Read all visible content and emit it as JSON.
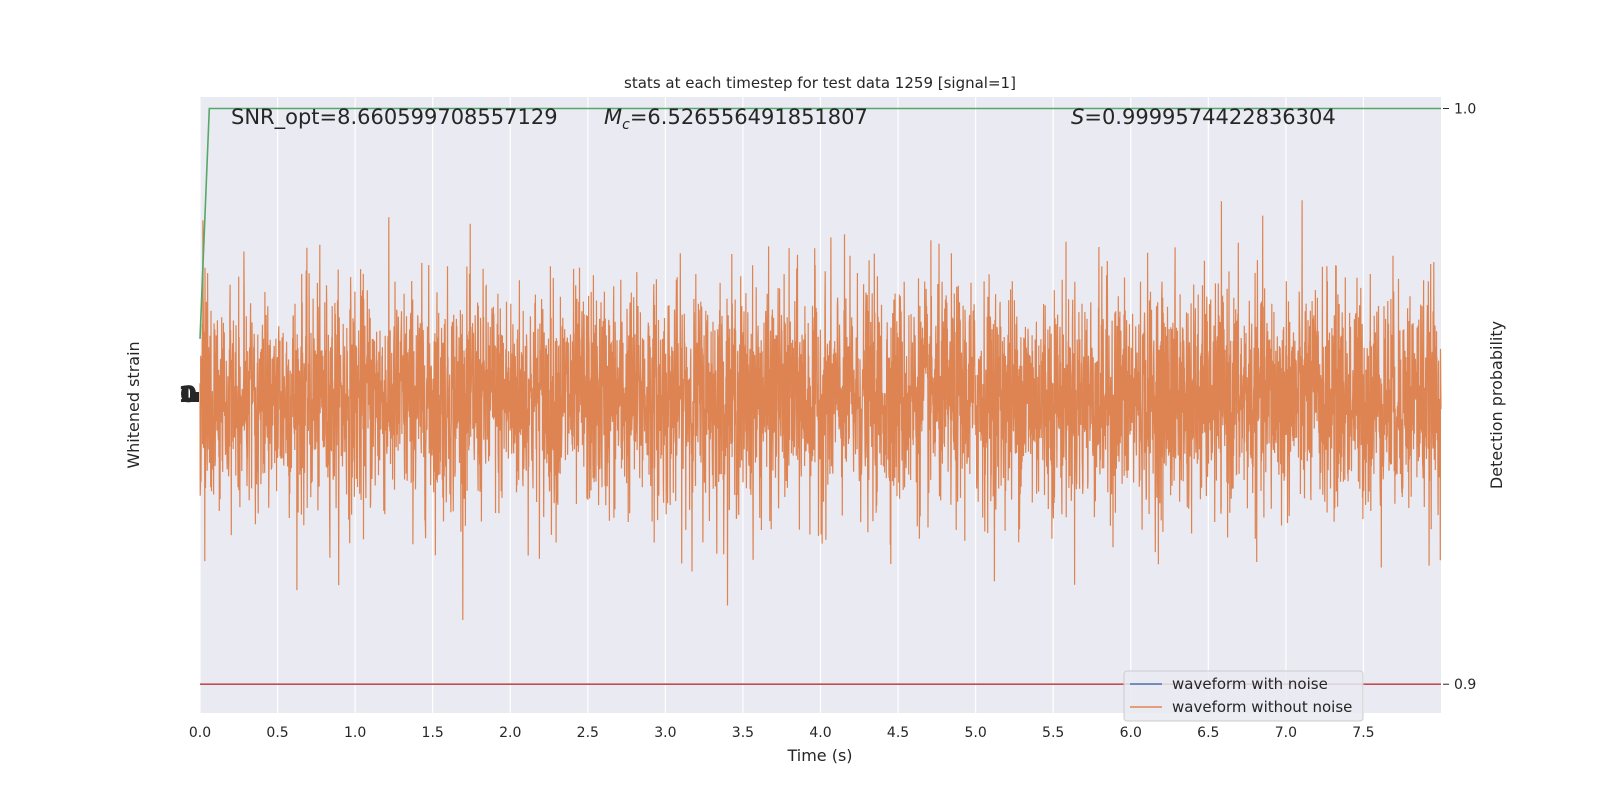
{
  "chart_data": {
    "type": "line",
    "title": "stats at each timestep for test data 1259 [signal=1]",
    "xlabel": "Time (s)",
    "ylabel_left": "Whitened strain",
    "ylabel_right": "Detection probability",
    "xlim": [
      0.0,
      8.0
    ],
    "xticks": [
      0.0,
      0.5,
      1.0,
      1.5,
      2.0,
      2.5,
      3.0,
      3.5,
      4.0,
      4.5,
      5.0,
      5.5,
      6.0,
      6.5,
      7.0,
      7.5
    ],
    "xtick_labels": [
      "0.0",
      "0.5",
      "1.0",
      "1.5",
      "2.0",
      "2.5",
      "3.0",
      "3.5",
      "4.0",
      "4.5",
      "5.0",
      "5.5",
      "6.0",
      "6.5",
      "7.0",
      "7.5"
    ],
    "ylim_right": [
      0.895,
      1.002
    ],
    "yticks_right": [
      0.9,
      1.0
    ],
    "ytick_labels_right": [
      "0.9",
      "1.0"
    ],
    "grid": true,
    "legend_position": "lower-right",
    "annotations": {
      "snr_text": "SNR_opt=8.660599708557129",
      "mc_prefix": "M",
      "mc_sub": "c",
      "mc_value": "=6.526556491851807",
      "s_prefix": "S",
      "s_value": "=0.9999574422836304"
    },
    "series": [
      {
        "name": "waveform with noise",
        "color": "#4c72b0",
        "axis": "left",
        "note_values": "noisy whitened strain, std ~1"
      },
      {
        "name": "waveform without noise",
        "color": "#dd8452",
        "axis": "left",
        "sample_rate_hz": 2048,
        "amplitude_range": [
          -5.6,
          5.8
        ]
      },
      {
        "color": "#55a868",
        "axis": "right",
        "x": [
          0.0,
          0.06,
          8.0
        ],
        "y": [
          0.96,
          1.0,
          1.0
        ]
      },
      {
        "color": "#c44e52",
        "axis": "right",
        "x": [
          0.0,
          8.0
        ],
        "y": [
          0.9,
          0.9
        ]
      }
    ],
    "colors": {
      "axes_bg": "#eaeaf2",
      "grid": "#ffffff"
    }
  }
}
